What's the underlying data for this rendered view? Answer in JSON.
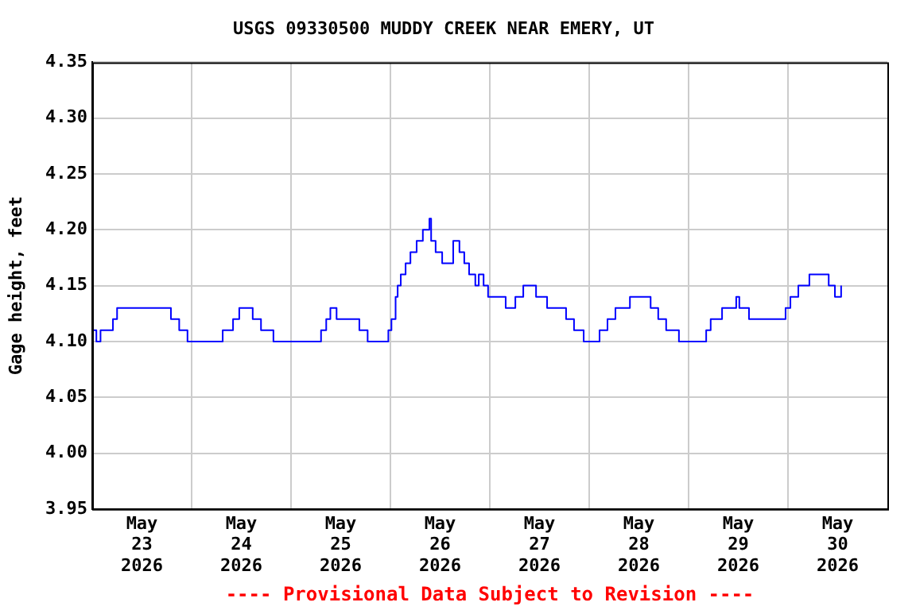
{
  "chart_data": {
    "type": "step",
    "title": "USGS 09330500 MUDDY CREEK NEAR EMERY, UT",
    "ylabel": "Gage height, feet",
    "annotations": [
      "---- Provisional Data Subject to Revision ----"
    ],
    "series": [
      {
        "color": "#0000ff",
        "x": [
          "2026-05-23T00:00",
          "2026-05-23T01:00",
          "2026-05-23T02:00",
          "2026-05-23T05:00",
          "2026-05-23T06:00",
          "2026-05-23T09:00",
          "2026-05-23T19:00",
          "2026-05-23T21:00",
          "2026-05-23T23:00",
          "2026-05-24T07:30",
          "2026-05-24T10:00",
          "2026-05-24T11:30",
          "2026-05-24T14:45",
          "2026-05-24T16:45",
          "2026-05-24T19:45",
          "2026-05-25T07:15",
          "2026-05-25T08:30",
          "2026-05-25T09:30",
          "2026-05-25T11:00",
          "2026-05-25T16:30",
          "2026-05-25T18:30",
          "2026-05-25T23:30",
          "2026-05-26T00:15",
          "2026-05-26T01:15",
          "2026-05-26T01:45",
          "2026-05-26T02:30",
          "2026-05-26T03:40",
          "2026-05-26T04:50",
          "2026-05-26T06:20",
          "2026-05-26T07:50",
          "2026-05-26T09:25",
          "2026-05-26T09:50",
          "2026-05-26T10:55",
          "2026-05-26T12:30",
          "2026-05-26T15:10",
          "2026-05-26T16:40",
          "2026-05-26T17:50",
          "2026-05-26T19:00",
          "2026-05-26T20:30",
          "2026-05-26T21:20",
          "2026-05-26T22:30",
          "2026-05-26T23:35",
          "2026-05-27T03:50",
          "2026-05-27T06:10",
          "2026-05-27T08:05",
          "2026-05-27T11:10",
          "2026-05-27T13:50",
          "2026-05-27T18:25",
          "2026-05-27T20:20",
          "2026-05-27T22:40",
          "2026-05-28T02:30",
          "2026-05-28T04:25",
          "2026-05-28T06:20",
          "2026-05-28T09:50",
          "2026-05-28T14:50",
          "2026-05-28T16:40",
          "2026-05-28T18:35",
          "2026-05-28T21:40",
          "2026-05-29T04:15",
          "2026-05-29T05:20",
          "2026-05-29T08:05",
          "2026-05-29T11:30",
          "2026-05-29T12:15",
          "2026-05-29T14:35",
          "2026-05-29T23:25",
          "2026-05-30T00:35",
          "2026-05-30T02:30",
          "2026-05-30T05:10",
          "2026-05-30T09:50",
          "2026-05-30T11:20",
          "2026-05-30T12:50"
        ],
        "values": [
          4.11,
          4.1,
          4.11,
          4.12,
          4.13,
          4.13,
          4.12,
          4.11,
          4.1,
          4.11,
          4.12,
          4.13,
          4.12,
          4.11,
          4.1,
          4.11,
          4.12,
          4.13,
          4.12,
          4.11,
          4.1,
          4.11,
          4.12,
          4.14,
          4.15,
          4.16,
          4.17,
          4.18,
          4.19,
          4.2,
          4.21,
          4.19,
          4.18,
          4.17,
          4.19,
          4.18,
          4.17,
          4.16,
          4.15,
          4.16,
          4.15,
          4.14,
          4.13,
          4.14,
          4.15,
          4.14,
          4.13,
          4.12,
          4.11,
          4.1,
          4.11,
          4.12,
          4.13,
          4.14,
          4.13,
          4.12,
          4.11,
          4.1,
          4.11,
          4.12,
          4.13,
          4.14,
          4.13,
          4.12,
          4.13,
          4.14,
          4.15,
          4.16,
          4.15,
          4.14,
          4.15
        ]
      }
    ],
    "xlim": [
      "2026-05-23T00:00",
      "2026-05-31T00:00"
    ],
    "xticks": [
      {
        "value": "2026-05-23T12:00",
        "label": "May 23 2026"
      },
      {
        "value": "2026-05-24T00:00",
        "label": null
      },
      {
        "value": "2026-05-24T12:00",
        "label": "May 24 2026"
      },
      {
        "value": "2026-05-25T00:00",
        "label": null
      },
      {
        "value": "2026-05-25T12:00",
        "label": "May 25 2026"
      },
      {
        "value": "2026-05-26T00:00",
        "label": null
      },
      {
        "value": "2026-05-26T12:00",
        "label": "May 26 2026"
      },
      {
        "value": "2026-05-27T00:00",
        "label": null
      },
      {
        "value": "2026-05-27T12:00",
        "label": "May 27 2026"
      },
      {
        "value": "2026-05-28T00:00",
        "label": null
      },
      {
        "value": "2026-05-28T12:00",
        "label": "May 28 2026"
      },
      {
        "value": "2026-05-29T00:00",
        "label": null
      },
      {
        "value": "2026-05-29T12:00",
        "label": "May 29 2026"
      },
      {
        "value": "2026-05-30T00:00",
        "label": null
      },
      {
        "value": "2026-05-30T12:00",
        "label": "May 30 2026"
      }
    ],
    "ylim": [
      3.95,
      4.35
    ],
    "yticks": [
      3.95,
      {
        "value": 4,
        "label": "4.00"
      },
      4.05,
      {
        "value": 4.1,
        "label": "4.10"
      },
      4.15,
      {
        "value": 4.2,
        "label": "4.20"
      },
      4.25,
      {
        "value": 4.3,
        "label": "4.30"
      },
      4.35
    ],
    "grid": true,
    "legend": false
  }
}
